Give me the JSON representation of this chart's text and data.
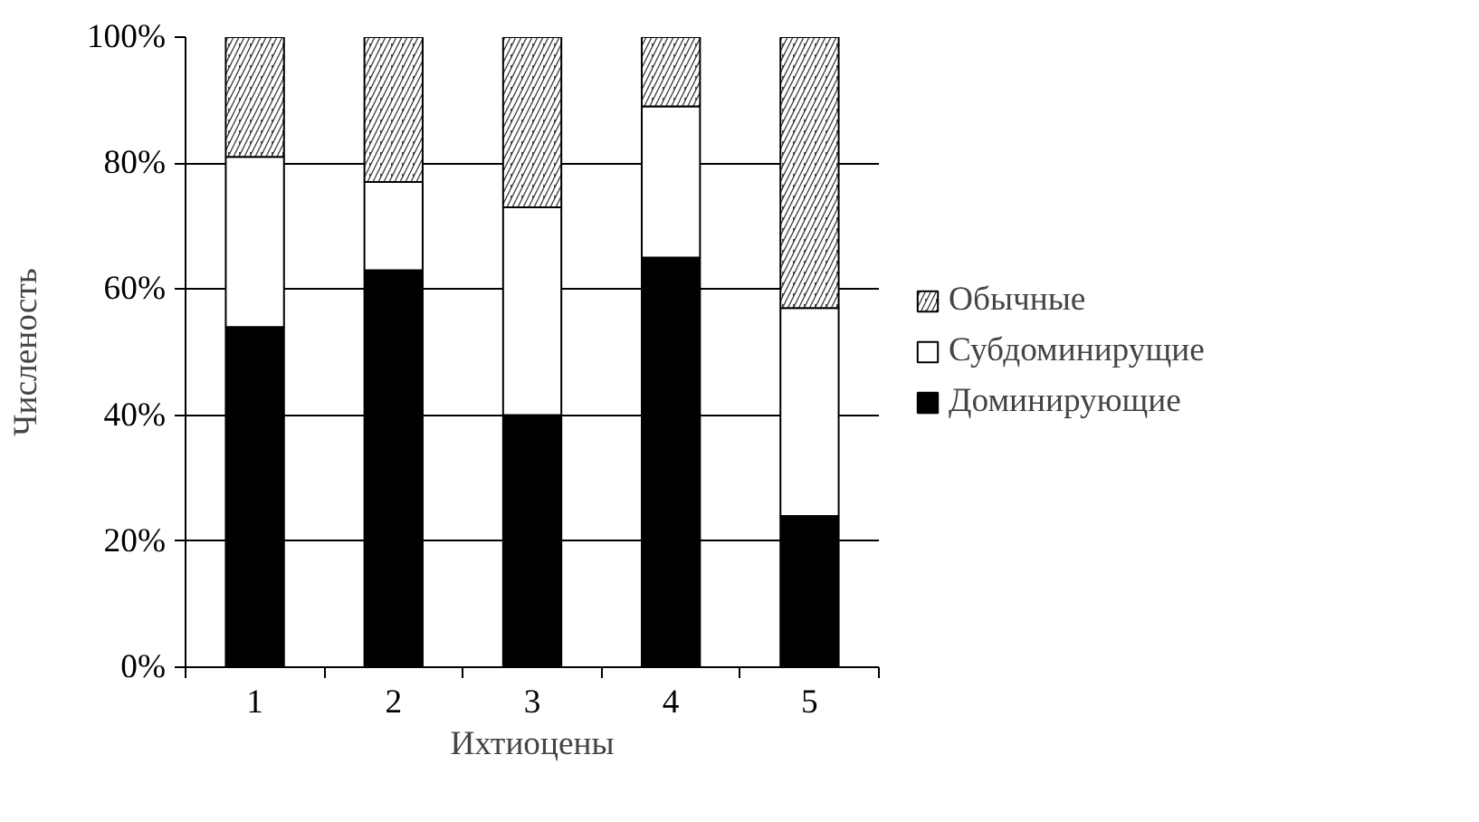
{
  "chart_data": {
    "type": "bar",
    "stacked": true,
    "xlabel": "Ихтиоцены",
    "ylabel": "Численость",
    "categories": [
      "1",
      "2",
      "3",
      "4",
      "5"
    ],
    "series": [
      {
        "name": "Доминирующие",
        "color": "#000000",
        "values": [
          54,
          63,
          40,
          65,
          24
        ]
      },
      {
        "name": "Субдоминирущие",
        "color": "#ffffff",
        "values": [
          27,
          14,
          33,
          24,
          33
        ]
      },
      {
        "name": "Обычные",
        "color": "#404040",
        "values": [
          19,
          23,
          27,
          11,
          43
        ]
      }
    ],
    "ylim": [
      0,
      100
    ],
    "yticks": [
      {
        "value": 0,
        "label": "0%"
      },
      {
        "value": 20,
        "label": "20%"
      },
      {
        "value": 40,
        "label": "40%"
      },
      {
        "value": 60,
        "label": "60%"
      },
      {
        "value": 80,
        "label": "80%"
      },
      {
        "value": 100,
        "label": "100%"
      }
    ],
    "grid": "y",
    "legend": "right"
  }
}
